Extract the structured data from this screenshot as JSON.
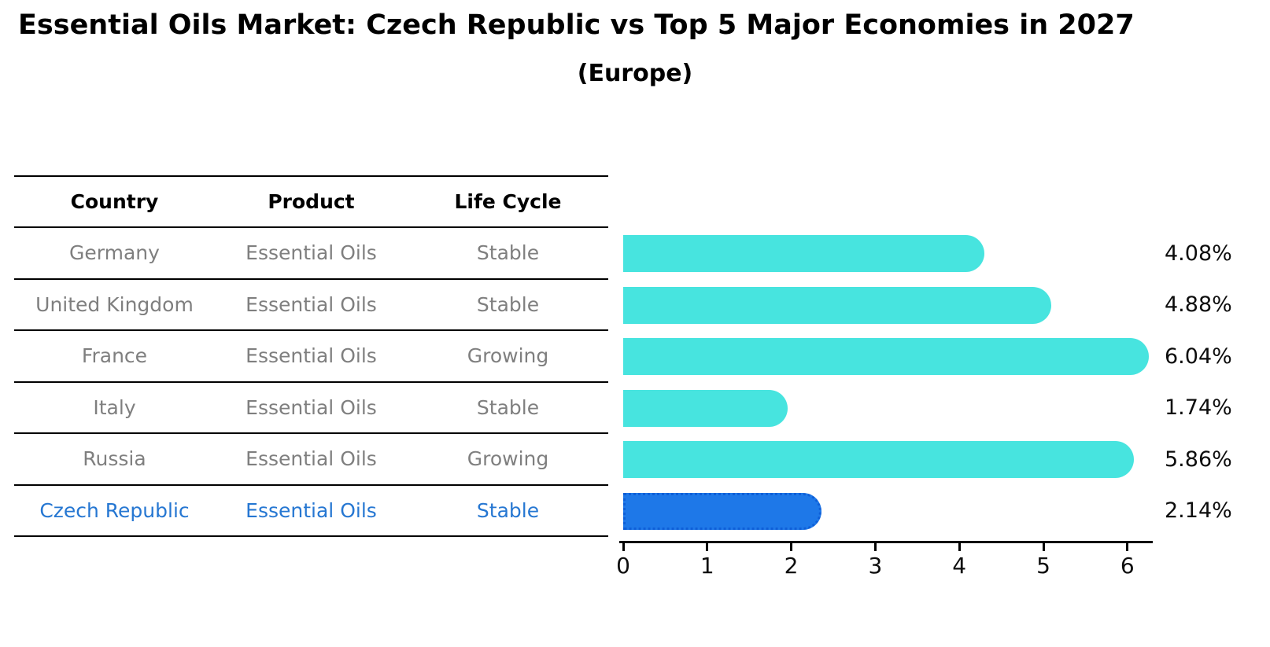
{
  "title": "Essential Oils Market: Czech Republic vs Top 5 Major Economies in 2027",
  "subtitle": "(Europe)",
  "table": {
    "headers": [
      "Country",
      "Product",
      "Life Cycle"
    ],
    "rows": [
      {
        "country": "Germany",
        "product": "Essential Oils",
        "life_cycle": "Stable",
        "highlight": false
      },
      {
        "country": "United Kingdom",
        "product": "Essential Oils",
        "life_cycle": "Stable",
        "highlight": false
      },
      {
        "country": "France",
        "product": "Essential Oils",
        "life_cycle": "Growing",
        "highlight": false
      },
      {
        "country": "Italy",
        "product": "Essential Oils",
        "life_cycle": "Stable",
        "highlight": false
      },
      {
        "country": "Russia",
        "product": "Essential Oils",
        "life_cycle": "Growing",
        "highlight": false
      },
      {
        "country": "Czech Republic",
        "product": "Essential Oils",
        "life_cycle": "Stable",
        "highlight": true
      }
    ]
  },
  "chart_data": {
    "type": "bar",
    "orientation": "horizontal",
    "title": "Essential Oils Market: Czech Republic vs Top 5 Major Economies in 2027",
    "subtitle": "(Europe)",
    "categories": [
      "Germany",
      "United Kingdom",
      "France",
      "Italy",
      "Russia",
      "Czech Republic"
    ],
    "values": [
      4.08,
      4.88,
      6.04,
      1.74,
      5.86,
      2.14
    ],
    "value_labels": [
      "4.08%",
      "4.88%",
      "6.04%",
      "1.74%",
      "5.86%",
      "2.14%"
    ],
    "highlight_index": 5,
    "x_tick_labels": [
      "0",
      "1",
      "2",
      "3",
      "4",
      "5",
      "6"
    ],
    "x_ticks": [
      0,
      1,
      2,
      3,
      4,
      5,
      6
    ],
    "xlim": [
      0,
      6.3
    ],
    "grid": false,
    "legend": false,
    "colors": {
      "bar": "#47E4DF",
      "highlight_bar": "#1E78E8",
      "highlight_border": "#0E5FD8",
      "label_text": "#0d0d0d",
      "row_text": "#7f7f7f",
      "highlight_text": "#2677D2"
    }
  }
}
